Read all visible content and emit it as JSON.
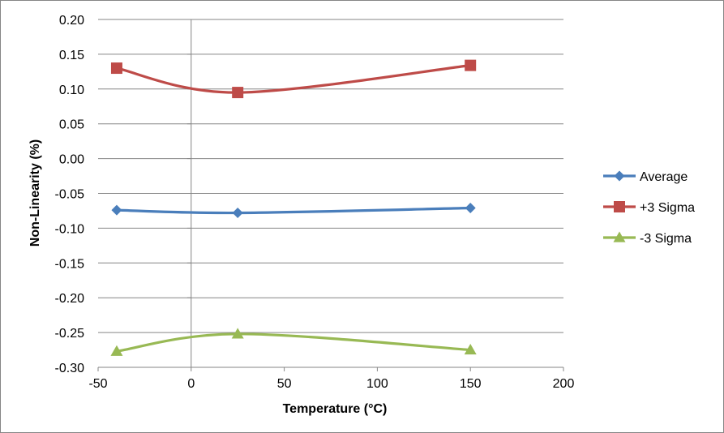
{
  "chart_data": {
    "type": "line",
    "title": "",
    "xlabel": "Temperature  (°C)",
    "ylabel": "Non-Linearity (%)",
    "xlim": [
      -50,
      200
    ],
    "ylim": [
      -0.3,
      0.2
    ],
    "xticks": [
      -50,
      0,
      50,
      100,
      150,
      200
    ],
    "yticks": [
      0.2,
      0.15,
      0.1,
      0.05,
      0.0,
      -0.05,
      -0.1,
      -0.15,
      -0.2,
      -0.25,
      -0.3
    ],
    "xtick_labels": [
      "-50",
      "0",
      "50",
      "100",
      "150",
      "200"
    ],
    "ytick_labels": [
      "0.20",
      "0.15",
      "0.10",
      "0.05",
      "0.00",
      "-0.05",
      "-0.10",
      "-0.15",
      "-0.20",
      "-0.25",
      "-0.30"
    ],
    "grid": "horizontal",
    "smooth": true,
    "legend_position": "right",
    "x": [
      -40,
      25,
      150
    ],
    "series": [
      {
        "name": "Average",
        "values": [
          -0.074,
          -0.078,
          -0.071
        ],
        "color": "#4a7ebb",
        "marker": "diamond"
      },
      {
        "name": "+3 Sigma",
        "values": [
          0.13,
          0.095,
          0.134
        ],
        "color": "#be4b48",
        "marker": "square"
      },
      {
        "name": "-3 Sigma",
        "values": [
          -0.277,
          -0.252,
          -0.275
        ],
        "color": "#98b954",
        "marker": "triangle"
      }
    ]
  }
}
